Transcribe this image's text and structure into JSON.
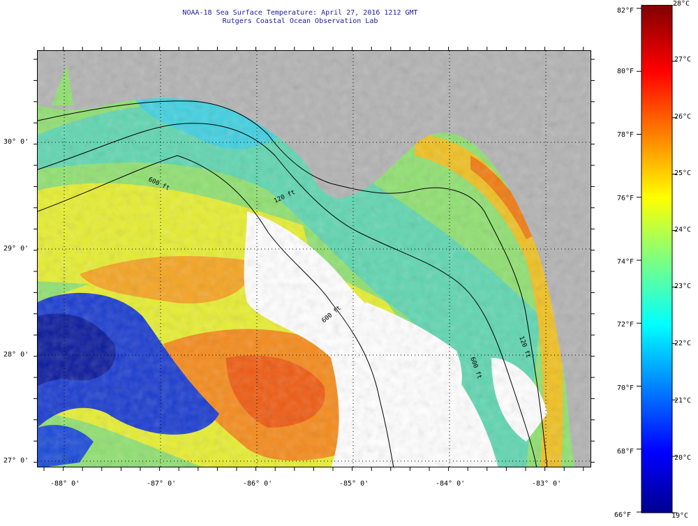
{
  "header": {
    "title_line1": "NOAA-18 Sea Surface Temperature:  April 27, 2016 1212 GMT",
    "title_line2": "Rutgers Coastal Ocean Observation Lab"
  },
  "map": {
    "longitude_labels": [
      "-88° 0'",
      "-87° 0'",
      "-86° 0'",
      "-85° 0'",
      "-84° 0'",
      "-83° 0'"
    ],
    "latitude_labels": [
      "30° 0'",
      "29° 0'",
      "28° 0'",
      "27° 0'"
    ],
    "lon_range": [
      -88.3,
      -82.6
    ],
    "lat_range": [
      26.95,
      30.85
    ],
    "contour_labels": [
      "600 ft",
      "120 ft",
      "600 ft",
      "600 ft",
      "120 ft"
    ],
    "land_color": "#b3b3b3",
    "cloud_color": "#ffffff"
  },
  "colorbar": {
    "fahrenheit_labels": [
      "82°F",
      "80°F",
      "78°F",
      "76°F",
      "74°F",
      "72°F",
      "70°F",
      "68°F",
      "66°F"
    ],
    "celsius_labels": [
      "28°C",
      "27°C",
      "26°C",
      "25°C",
      "24°C",
      "23°C",
      "22°C",
      "21°C",
      "20°C",
      "19°C"
    ],
    "f_range": [
      66,
      82
    ],
    "c_range": [
      19,
      28
    ]
  }
}
